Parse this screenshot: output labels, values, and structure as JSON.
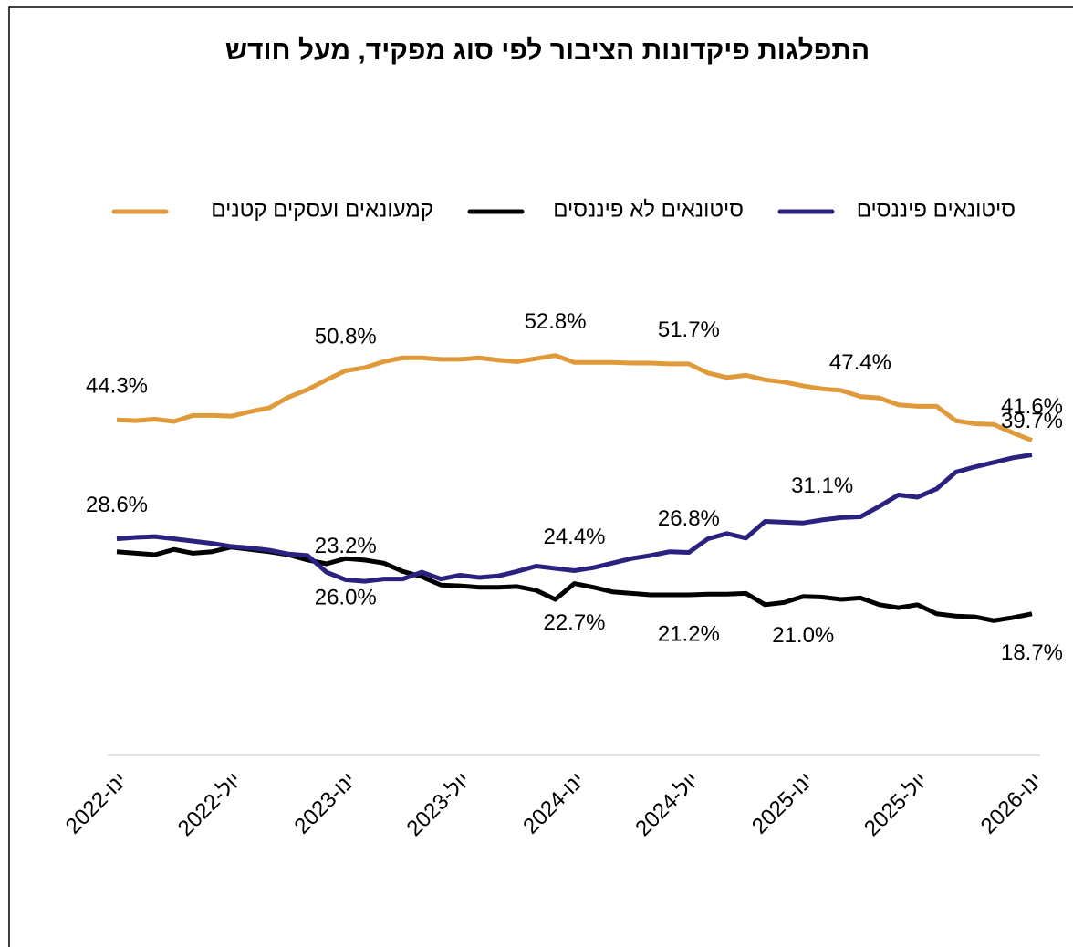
{
  "chart_data": {
    "type": "line",
    "title": "התפלגות פיקדונות הציבור לפי סוג מפקיד, מעל חודש",
    "categories": [
      "2022-ינו",
      null,
      null,
      null,
      null,
      null,
      "2022-יול",
      null,
      null,
      null,
      null,
      null,
      "2023-ינו",
      null,
      null,
      null,
      null,
      null,
      "2023-יול",
      null,
      null,
      null,
      null,
      null,
      "2024-ינו",
      null,
      null,
      null,
      null,
      null,
      "2024-יול",
      null,
      null,
      null,
      null,
      null,
      "2025-ינו",
      null,
      null,
      null,
      null,
      null,
      "2025-יול",
      null,
      null,
      null,
      null,
      null,
      "2026-ינו"
    ],
    "ylim": [
      0,
      60
    ],
    "legend": "top",
    "series": [
      {
        "name": "סיטונאים פיננסים",
        "color": "#2b2280",
        "values": [
          28.6,
          28.8,
          28.9,
          28.6,
          28.3,
          28.0,
          27.6,
          27.4,
          27.1,
          26.6,
          26.4,
          24.2,
          23.2,
          23.0,
          23.3,
          23.3,
          24.2,
          23.3,
          23.8,
          23.5,
          23.7,
          24.3,
          25.0,
          24.7,
          24.4,
          24.8,
          25.4,
          26.0,
          26.4,
          26.9,
          26.8,
          28.6,
          29.3,
          28.7,
          30.9,
          30.8,
          30.7,
          31.1,
          31.4,
          31.5,
          32.9,
          34.4,
          34.1,
          35.2,
          37.4,
          38.1,
          38.7,
          39.3,
          39.7
        ],
        "value_labels": [
          "28.6%",
          null,
          null,
          null,
          null,
          null,
          null,
          null,
          null,
          null,
          null,
          null,
          "23.2%",
          null,
          null,
          null,
          null,
          null,
          null,
          null,
          null,
          null,
          null,
          null,
          "24.4%",
          null,
          null,
          null,
          null,
          null,
          "26.8%",
          null,
          null,
          null,
          null,
          null,
          null,
          "31.1%",
          null,
          null,
          null,
          null,
          null,
          null,
          null,
          null,
          null,
          null,
          "39.7%"
        ]
      },
      {
        "name": "סיטונאים לא פיננסים",
        "color": "#000000",
        "values": [
          26.9,
          26.7,
          26.5,
          27.2,
          26.7,
          26.9,
          27.5,
          27.2,
          26.9,
          26.5,
          25.8,
          25.3,
          26.0,
          25.8,
          25.4,
          24.3,
          23.6,
          22.5,
          22.4,
          22.2,
          22.2,
          22.3,
          21.8,
          20.6,
          22.7,
          22.2,
          21.6,
          21.4,
          21.2,
          21.2,
          21.2,
          21.3,
          21.3,
          21.4,
          19.9,
          20.2,
          21.0,
          20.9,
          20.6,
          20.8,
          19.9,
          19.5,
          19.9,
          18.7,
          18.4,
          18.3,
          17.8,
          18.2,
          18.7
        ],
        "value_labels": [
          null,
          null,
          null,
          null,
          null,
          null,
          null,
          null,
          null,
          null,
          null,
          null,
          "26.0%",
          null,
          null,
          null,
          null,
          null,
          null,
          null,
          null,
          null,
          null,
          null,
          "22.7%",
          null,
          null,
          null,
          null,
          null,
          "21.2%",
          null,
          null,
          null,
          null,
          null,
          "21.0%",
          null,
          null,
          null,
          null,
          null,
          null,
          null,
          null,
          null,
          null,
          null,
          "18.7%"
        ]
      },
      {
        "name": "קמעונאים ועסקים קטנים",
        "color": "#e09a3a",
        "values": [
          44.3,
          44.2,
          44.4,
          44.1,
          44.9,
          44.9,
          44.8,
          45.4,
          45.9,
          47.3,
          48.3,
          49.6,
          50.8,
          51.2,
          52.0,
          52.5,
          52.5,
          52.3,
          52.3,
          52.5,
          52.2,
          52.0,
          52.4,
          52.8,
          51.9,
          51.9,
          51.9,
          51.8,
          51.8,
          51.7,
          51.7,
          50.5,
          49.9,
          50.2,
          49.6,
          49.3,
          48.8,
          48.4,
          48.2,
          47.4,
          47.2,
          46.3,
          46.1,
          46.1,
          44.2,
          43.8,
          43.7,
          42.6,
          41.6
        ],
        "value_labels": [
          "44.3%",
          null,
          null,
          null,
          null,
          null,
          null,
          null,
          null,
          null,
          null,
          null,
          "50.8%",
          null,
          null,
          null,
          null,
          null,
          null,
          null,
          null,
          null,
          null,
          "52.8%",
          null,
          null,
          null,
          null,
          null,
          null,
          "51.7%",
          null,
          null,
          null,
          null,
          null,
          null,
          null,
          null,
          "47.4%",
          null,
          null,
          null,
          null,
          null,
          null,
          null,
          null,
          "41.6%"
        ]
      }
    ]
  }
}
